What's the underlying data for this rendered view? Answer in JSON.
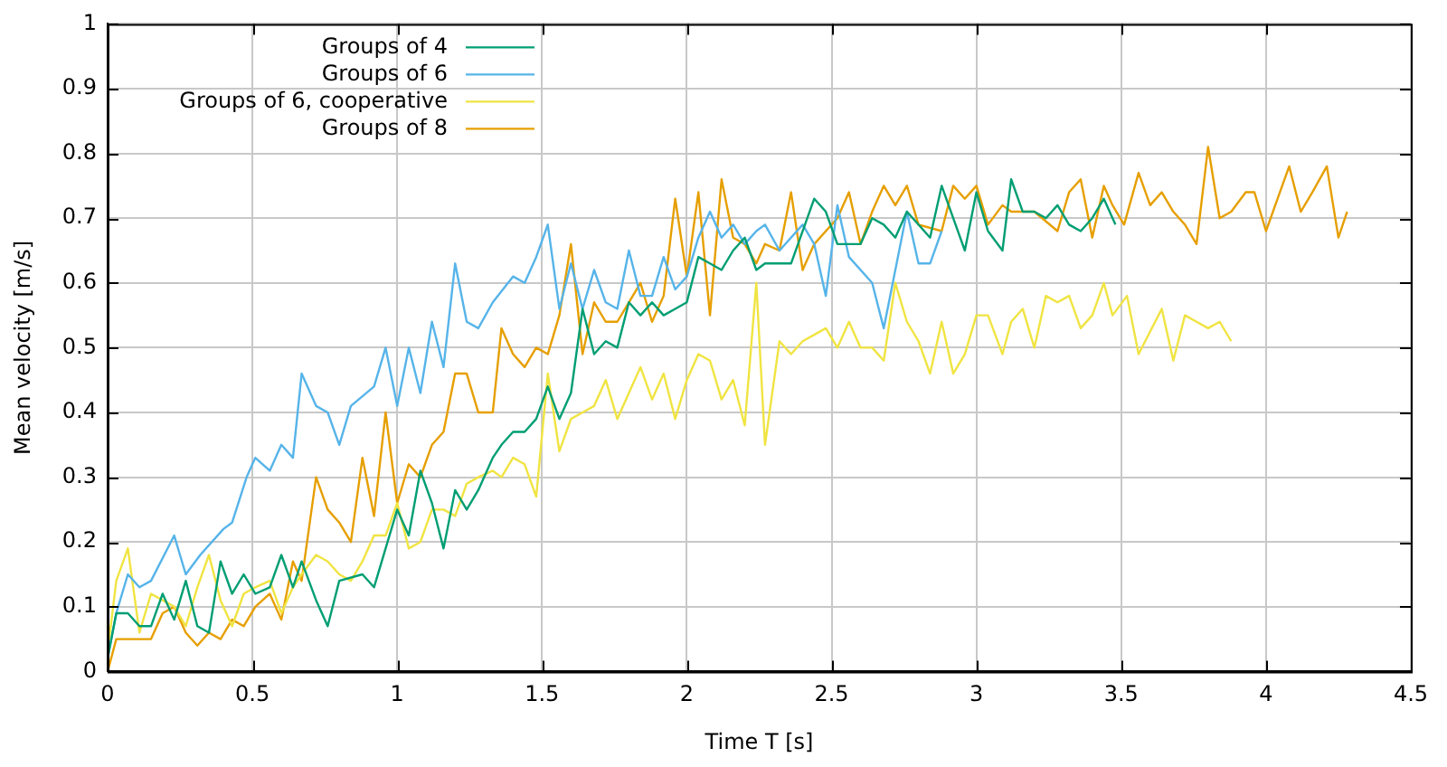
{
  "chart_data": {
    "type": "line",
    "xlabel": "Time T [s]",
    "ylabel": "Mean velocity [m/s]",
    "xlim": [
      0,
      4.5
    ],
    "xticks": [
      0,
      0.5,
      1,
      1.5,
      2,
      2.5,
      3,
      3.5,
      4,
      4.5
    ],
    "ylim": [
      0,
      1
    ],
    "yticks": [
      0,
      0.1,
      0.2,
      0.3,
      0.4,
      0.5,
      0.6,
      0.7,
      0.8,
      0.9,
      1
    ],
    "grid": true,
    "legend": "top left",
    "marker": "none",
    "line_style": "solid",
    "series": [
      {
        "name": "Groups of 4",
        "color": "#009e73",
        "x": [
          0,
          0.03,
          0.07,
          0.11,
          0.15,
          0.19,
          0.23,
          0.27,
          0.31,
          0.35,
          0.39,
          0.43,
          0.47,
          0.51,
          0.56,
          0.6,
          0.64,
          0.67,
          0.72,
          0.76,
          0.8,
          0.88,
          0.92,
          1.0,
          1.04,
          1.08,
          1.12,
          1.16,
          1.2,
          1.24,
          1.28,
          1.33,
          1.36,
          1.4,
          1.44,
          1.48,
          1.52,
          1.56,
          1.6,
          1.64,
          1.68,
          1.72,
          1.76,
          1.8,
          1.84,
          1.88,
          1.92,
          1.96,
          2.0,
          2.04,
          2.08,
          2.12,
          2.16,
          2.2,
          2.24,
          2.27,
          2.32,
          2.36,
          2.44,
          2.48,
          2.52,
          2.6,
          2.64,
          2.68,
          2.72,
          2.76,
          2.84,
          2.88,
          2.96,
          3.0,
          3.04,
          3.09,
          3.12,
          3.16,
          3.2,
          3.24,
          3.28,
          3.32,
          3.36,
          3.4,
          3.44,
          3.48
        ],
        "values": [
          0.02,
          0.09,
          0.09,
          0.07,
          0.07,
          0.12,
          0.08,
          0.14,
          0.07,
          0.06,
          0.17,
          0.12,
          0.15,
          0.12,
          0.13,
          0.18,
          0.13,
          0.17,
          0.11,
          0.07,
          0.14,
          0.15,
          0.13,
          0.25,
          0.21,
          0.31,
          0.26,
          0.19,
          0.28,
          0.25,
          0.28,
          0.33,
          0.35,
          0.37,
          0.37,
          0.39,
          0.44,
          0.39,
          0.43,
          0.56,
          0.49,
          0.51,
          0.5,
          0.57,
          0.55,
          0.57,
          0.55,
          0.56,
          0.57,
          0.64,
          0.63,
          0.62,
          0.65,
          0.67,
          0.62,
          0.63,
          0.63,
          0.63,
          0.73,
          0.71,
          0.66,
          0.66,
          0.7,
          0.69,
          0.67,
          0.71,
          0.67,
          0.75,
          0.65,
          0.74,
          0.68,
          0.65,
          0.76,
          0.71,
          0.71,
          0.7,
          0.72,
          0.69,
          0.68,
          0.7,
          0.73,
          0.69
        ]
      },
      {
        "name": "Groups of 6",
        "color": "#56b4e9",
        "x": [
          0,
          0.03,
          0.07,
          0.11,
          0.15,
          0.23,
          0.27,
          0.32,
          0.4,
          0.43,
          0.48,
          0.51,
          0.56,
          0.6,
          0.64,
          0.67,
          0.72,
          0.76,
          0.8,
          0.84,
          0.92,
          0.96,
          1.0,
          1.04,
          1.08,
          1.12,
          1.16,
          1.2,
          1.24,
          1.28,
          1.33,
          1.4,
          1.44,
          1.48,
          1.52,
          1.56,
          1.6,
          1.64,
          1.68,
          1.72,
          1.76,
          1.8,
          1.84,
          1.88,
          1.92,
          1.96,
          2.0,
          2.04,
          2.08,
          2.12,
          2.16,
          2.2,
          2.24,
          2.27,
          2.32,
          2.4,
          2.44,
          2.48,
          2.52,
          2.56,
          2.64,
          2.68,
          2.76,
          2.8,
          2.84,
          2.88
        ],
        "values": [
          0.02,
          0.09,
          0.15,
          0.13,
          0.14,
          0.21,
          0.15,
          0.18,
          0.22,
          0.23,
          0.3,
          0.33,
          0.31,
          0.35,
          0.33,
          0.46,
          0.41,
          0.4,
          0.35,
          0.41,
          0.44,
          0.5,
          0.41,
          0.5,
          0.43,
          0.54,
          0.47,
          0.63,
          0.54,
          0.53,
          0.57,
          0.61,
          0.6,
          0.64,
          0.69,
          0.56,
          0.63,
          0.56,
          0.62,
          0.57,
          0.56,
          0.65,
          0.58,
          0.58,
          0.64,
          0.59,
          0.61,
          0.67,
          0.71,
          0.67,
          0.69,
          0.66,
          0.68,
          0.69,
          0.65,
          0.69,
          0.66,
          0.58,
          0.72,
          0.64,
          0.6,
          0.53,
          0.71,
          0.63,
          0.63,
          0.68
        ]
      },
      {
        "name": "Groups of 6, cooperative",
        "color": "#f0e442",
        "x": [
          0,
          0.03,
          0.07,
          0.11,
          0.15,
          0.19,
          0.23,
          0.27,
          0.31,
          0.35,
          0.39,
          0.43,
          0.47,
          0.51,
          0.56,
          0.6,
          0.64,
          0.67,
          0.72,
          0.76,
          0.8,
          0.84,
          0.88,
          0.92,
          0.96,
          1.0,
          1.04,
          1.08,
          1.12,
          1.16,
          1.2,
          1.24,
          1.28,
          1.33,
          1.36,
          1.4,
          1.44,
          1.48,
          1.52,
          1.56,
          1.6,
          1.64,
          1.68,
          1.72,
          1.76,
          1.8,
          1.84,
          1.88,
          1.92,
          1.96,
          2.0,
          2.04,
          2.08,
          2.12,
          2.16,
          2.2,
          2.24,
          2.27,
          2.32,
          2.36,
          2.4,
          2.44,
          2.48,
          2.52,
          2.56,
          2.6,
          2.64,
          2.68,
          2.72,
          2.76,
          2.8,
          2.84,
          2.88,
          2.92,
          2.96,
          3.0,
          3.04,
          3.09,
          3.12,
          3.16,
          3.2,
          3.24,
          3.28,
          3.32,
          3.36,
          3.4,
          3.44,
          3.47,
          3.52,
          3.56,
          3.64,
          3.68,
          3.72,
          3.76,
          3.8,
          3.84,
          3.88
        ],
        "values": [
          0.03,
          0.14,
          0.19,
          0.06,
          0.12,
          0.11,
          0.1,
          0.07,
          0.13,
          0.18,
          0.11,
          0.07,
          0.12,
          0.13,
          0.14,
          0.09,
          0.13,
          0.15,
          0.18,
          0.17,
          0.15,
          0.14,
          0.17,
          0.21,
          0.21,
          0.26,
          0.19,
          0.2,
          0.25,
          0.25,
          0.24,
          0.29,
          0.3,
          0.31,
          0.3,
          0.33,
          0.32,
          0.27,
          0.46,
          0.34,
          0.39,
          0.4,
          0.41,
          0.45,
          0.39,
          0.43,
          0.47,
          0.42,
          0.46,
          0.39,
          0.45,
          0.49,
          0.48,
          0.42,
          0.45,
          0.38,
          0.6,
          0.35,
          0.51,
          0.49,
          0.51,
          0.52,
          0.53,
          0.5,
          0.54,
          0.5,
          0.5,
          0.48,
          0.6,
          0.54,
          0.51,
          0.46,
          0.54,
          0.46,
          0.49,
          0.55,
          0.55,
          0.49,
          0.54,
          0.56,
          0.5,
          0.58,
          0.57,
          0.58,
          0.53,
          0.55,
          0.6,
          0.55,
          0.58,
          0.49,
          0.56,
          0.48,
          0.55,
          0.54,
          0.53,
          0.54,
          0.51
        ]
      },
      {
        "name": "Groups of 8",
        "color": "#e69f00",
        "x": [
          0,
          0.03,
          0.07,
          0.11,
          0.15,
          0.19,
          0.23,
          0.27,
          0.31,
          0.35,
          0.39,
          0.43,
          0.47,
          0.51,
          0.56,
          0.6,
          0.64,
          0.67,
          0.72,
          0.76,
          0.8,
          0.84,
          0.88,
          0.92,
          0.96,
          1.0,
          1.04,
          1.08,
          1.12,
          1.16,
          1.2,
          1.24,
          1.28,
          1.33,
          1.36,
          1.4,
          1.44,
          1.48,
          1.52,
          1.56,
          1.6,
          1.64,
          1.68,
          1.72,
          1.76,
          1.8,
          1.84,
          1.88,
          1.92,
          1.96,
          2.0,
          2.04,
          2.08,
          2.12,
          2.16,
          2.2,
          2.24,
          2.27,
          2.32,
          2.36,
          2.4,
          2.44,
          2.52,
          2.56,
          2.6,
          2.64,
          2.68,
          2.72,
          2.76,
          2.8,
          2.88,
          2.92,
          2.96,
          3.0,
          3.04,
          3.09,
          3.12,
          3.2,
          3.28,
          3.32,
          3.36,
          3.4,
          3.44,
          3.47,
          3.51,
          3.56,
          3.6,
          3.64,
          3.68,
          3.72,
          3.76,
          3.8,
          3.84,
          3.88,
          3.93,
          3.96,
          4.0,
          4.04,
          4.08,
          4.12,
          4.16,
          4.21,
          4.25,
          4.28
        ],
        "values": [
          0.0,
          0.05,
          0.05,
          0.05,
          0.05,
          0.09,
          0.1,
          0.06,
          0.04,
          0.06,
          0.05,
          0.08,
          0.07,
          0.1,
          0.12,
          0.08,
          0.17,
          0.14,
          0.3,
          0.25,
          0.23,
          0.2,
          0.33,
          0.24,
          0.4,
          0.26,
          0.32,
          0.3,
          0.35,
          0.37,
          0.46,
          0.46,
          0.4,
          0.4,
          0.53,
          0.49,
          0.47,
          0.5,
          0.49,
          0.55,
          0.66,
          0.49,
          0.57,
          0.54,
          0.54,
          0.57,
          0.6,
          0.54,
          0.58,
          0.73,
          0.61,
          0.74,
          0.55,
          0.76,
          0.67,
          0.66,
          0.63,
          0.66,
          0.65,
          0.74,
          0.62,
          0.66,
          0.7,
          0.74,
          0.66,
          0.71,
          0.75,
          0.72,
          0.75,
          0.69,
          0.68,
          0.75,
          0.73,
          0.75,
          0.69,
          0.72,
          0.71,
          0.71,
          0.68,
          0.74,
          0.76,
          0.67,
          0.75,
          0.72,
          0.69,
          0.77,
          0.72,
          0.74,
          0.71,
          0.69,
          0.66,
          0.81,
          0.7,
          0.71,
          0.74,
          0.74,
          0.68,
          0.73,
          0.78,
          0.71,
          0.74,
          0.78,
          0.67,
          0.71
        ]
      }
    ]
  }
}
